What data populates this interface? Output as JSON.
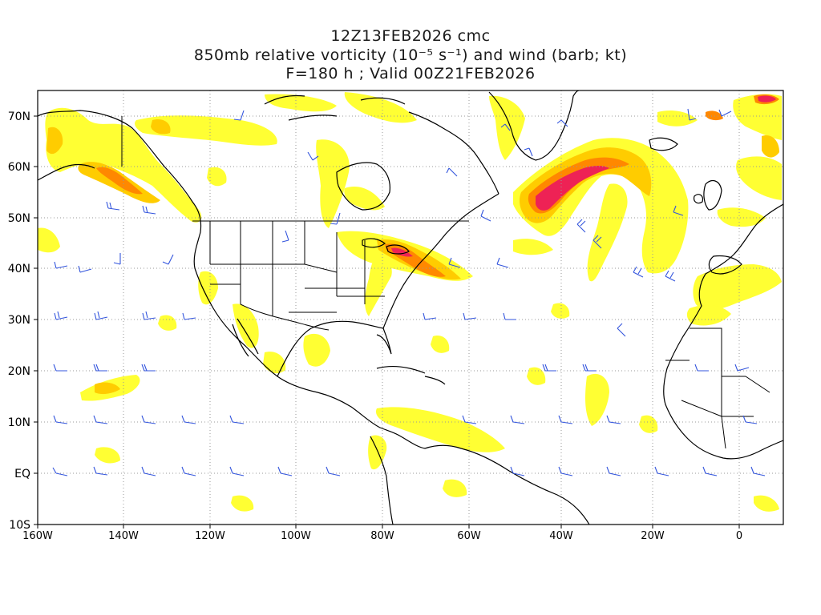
{
  "title": {
    "line1": "12Z13FEB2026 cmc",
    "line2": "850mb relative vorticity (10⁻⁵ s⁻¹) and wind (barb; kt)",
    "line3": "F=180 h ; Valid 00Z21FEB2026"
  },
  "axes": {
    "lat_ticks": [
      "70N",
      "60N",
      "50N",
      "40N",
      "30N",
      "20N",
      "10N",
      "EQ",
      "10S"
    ],
    "lon_ticks": [
      "160W",
      "140W",
      "120W",
      "100W",
      "80W",
      "60W",
      "40W",
      "20W",
      "0"
    ]
  },
  "colors": {
    "low": "#ffff33",
    "mid": "#ffcc00",
    "high": "#ff8800",
    "max": "#ee2255",
    "barb": "#3355dd",
    "coast": "#000000",
    "grid": "#999999"
  }
}
